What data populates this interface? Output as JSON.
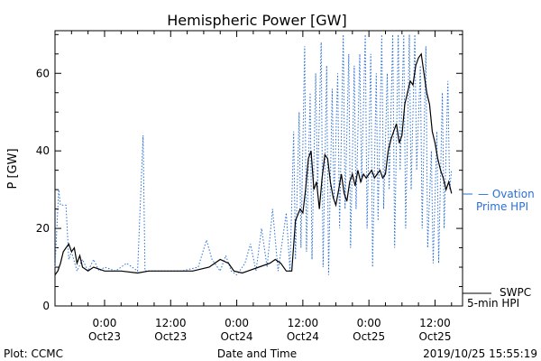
{
  "chart_data": {
    "type": "line",
    "title": "Hemispheric Power [GW]",
    "xlabel": "Date and Time",
    "ylabel": "P [GW]",
    "ylim": [
      0,
      71
    ],
    "xlim": [
      "2019-10-22T15:00",
      "2019-10-25T17:00"
    ],
    "yticks": [
      0,
      20,
      40,
      60
    ],
    "yticks_minor_step": 5,
    "xticks": [
      {
        "t": "2019-10-23T00:00",
        "l1": "0:00",
        "l2": "Oct23"
      },
      {
        "t": "2019-10-23T12:00",
        "l1": "12:00",
        "l2": "Oct23"
      },
      {
        "t": "2019-10-24T00:00",
        "l1": "0:00",
        "l2": "Oct24"
      },
      {
        "t": "2019-10-24T12:00",
        "l1": "12:00",
        "l2": "Oct24"
      },
      {
        "t": "2019-10-25T00:00",
        "l1": "0:00",
        "l2": "Oct25"
      },
      {
        "t": "2019-10-25T12:00",
        "l1": "12:00",
        "l2": "Oct25"
      }
    ],
    "grid": false,
    "series": [
      {
        "name": "SWPC 5-min HPI",
        "style": "solid",
        "color": "#000000",
        "points": [
          [
            "2019-10-22T15:00",
            8
          ],
          [
            "2019-10-22T15:30",
            9
          ],
          [
            "2019-10-22T16:00",
            11
          ],
          [
            "2019-10-22T16:30",
            14
          ],
          [
            "2019-10-22T17:00",
            15
          ],
          [
            "2019-10-22T17:30",
            16
          ],
          [
            "2019-10-22T18:00",
            14
          ],
          [
            "2019-10-22T18:30",
            15
          ],
          [
            "2019-10-22T19:00",
            11
          ],
          [
            "2019-10-22T19:30",
            13
          ],
          [
            "2019-10-22T20:00",
            10
          ],
          [
            "2019-10-22T21:00",
            9
          ],
          [
            "2019-10-22T22:00",
            10
          ],
          [
            "2019-10-23T00:00",
            9
          ],
          [
            "2019-10-23T03:00",
            9
          ],
          [
            "2019-10-23T06:00",
            8.5
          ],
          [
            "2019-10-23T08:00",
            9
          ],
          [
            "2019-10-23T12:00",
            9
          ],
          [
            "2019-10-23T16:00",
            9
          ],
          [
            "2019-10-23T19:00",
            10
          ],
          [
            "2019-10-23T21:00",
            12
          ],
          [
            "2019-10-23T22:30",
            11
          ],
          [
            "2019-10-23T23:30",
            9
          ],
          [
            "2019-10-24T01:00",
            8.5
          ],
          [
            "2019-10-24T02:00",
            9
          ],
          [
            "2019-10-24T04:00",
            10
          ],
          [
            "2019-10-24T06:00",
            11
          ],
          [
            "2019-10-24T07:00",
            12
          ],
          [
            "2019-10-24T08:00",
            11
          ],
          [
            "2019-10-24T09:00",
            9
          ],
          [
            "2019-10-24T10:00",
            9
          ],
          [
            "2019-10-24T10:40",
            22
          ],
          [
            "2019-10-24T11:30",
            25
          ],
          [
            "2019-10-24T12:00",
            24
          ],
          [
            "2019-10-24T12:30",
            30
          ],
          [
            "2019-10-24T13:00",
            38
          ],
          [
            "2019-10-24T13:30",
            40
          ],
          [
            "2019-10-24T14:00",
            30
          ],
          [
            "2019-10-24T14:30",
            32
          ],
          [
            "2019-10-24T15:00",
            25
          ],
          [
            "2019-10-24T15:30",
            33
          ],
          [
            "2019-10-24T16:00",
            39
          ],
          [
            "2019-10-24T16:30",
            38
          ],
          [
            "2019-10-24T17:00",
            32
          ],
          [
            "2019-10-24T17:30",
            28
          ],
          [
            "2019-10-24T18:00",
            26
          ],
          [
            "2019-10-24T18:30",
            30
          ],
          [
            "2019-10-24T19:00",
            34
          ],
          [
            "2019-10-24T19:30",
            29
          ],
          [
            "2019-10-24T20:00",
            27
          ],
          [
            "2019-10-24T20:30",
            32
          ],
          [
            "2019-10-24T21:00",
            34
          ],
          [
            "2019-10-24T21:30",
            31
          ],
          [
            "2019-10-24T22:00",
            35
          ],
          [
            "2019-10-24T22:30",
            32
          ],
          [
            "2019-10-24T23:00",
            34
          ],
          [
            "2019-10-24T23:30",
            33
          ],
          [
            "2019-10-25T00:00",
            34
          ],
          [
            "2019-10-25T00:30",
            35
          ],
          [
            "2019-10-25T01:00",
            33
          ],
          [
            "2019-10-25T01:30",
            34
          ],
          [
            "2019-10-25T02:00",
            35
          ],
          [
            "2019-10-25T02:30",
            33
          ],
          [
            "2019-10-25T03:00",
            34
          ],
          [
            "2019-10-25T03:30",
            40
          ],
          [
            "2019-10-25T04:00",
            43
          ],
          [
            "2019-10-25T04:30",
            45
          ],
          [
            "2019-10-25T05:00",
            47
          ],
          [
            "2019-10-25T05:30",
            42
          ],
          [
            "2019-10-25T06:00",
            44
          ],
          [
            "2019-10-25T06:30",
            52
          ],
          [
            "2019-10-25T07:00",
            55
          ],
          [
            "2019-10-25T07:30",
            58
          ],
          [
            "2019-10-25T08:00",
            57
          ],
          [
            "2019-10-25T08:30",
            62
          ],
          [
            "2019-10-25T09:00",
            64
          ],
          [
            "2019-10-25T09:30",
            65
          ],
          [
            "2019-10-25T10:00",
            60
          ],
          [
            "2019-10-25T10:30",
            55
          ],
          [
            "2019-10-25T11:00",
            52
          ],
          [
            "2019-10-25T11:30",
            45
          ],
          [
            "2019-10-25T12:00",
            42
          ],
          [
            "2019-10-25T12:30",
            38
          ],
          [
            "2019-10-25T13:00",
            35
          ],
          [
            "2019-10-25T13:30",
            33
          ],
          [
            "2019-10-25T14:00",
            30
          ],
          [
            "2019-10-25T14:30",
            32
          ],
          [
            "2019-10-25T15:00",
            29
          ]
        ]
      },
      {
        "name": "Ovation Prime HPI",
        "style": "dotted",
        "color": "#2a6fd6",
        "points": [
          [
            "2019-10-22T15:00",
            10
          ],
          [
            "2019-10-22T15:40",
            30
          ],
          [
            "2019-10-22T16:00",
            26
          ],
          [
            "2019-10-22T17:00",
            26
          ],
          [
            "2019-10-22T17:30",
            12
          ],
          [
            "2019-10-22T18:00",
            14
          ],
          [
            "2019-10-22T19:00",
            9
          ],
          [
            "2019-10-22T20:00",
            12
          ],
          [
            "2019-10-22T21:00",
            9
          ],
          [
            "2019-10-22T22:00",
            12
          ],
          [
            "2019-10-22T23:00",
            9
          ],
          [
            "2019-10-23T00:00",
            10
          ],
          [
            "2019-10-23T02:00",
            9
          ],
          [
            "2019-10-23T04:00",
            11
          ],
          [
            "2019-10-23T06:00",
            9
          ],
          [
            "2019-10-23T07:00",
            44
          ],
          [
            "2019-10-23T07:20",
            9
          ],
          [
            "2019-10-23T10:00",
            9
          ],
          [
            "2019-10-23T14:00",
            9
          ],
          [
            "2019-10-23T17:00",
            10
          ],
          [
            "2019-10-23T18:30",
            17
          ],
          [
            "2019-10-23T19:30",
            12
          ],
          [
            "2019-10-23T21:00",
            9
          ],
          [
            "2019-10-23T22:00",
            13
          ],
          [
            "2019-10-23T23:00",
            9
          ],
          [
            "2019-10-24T00:00",
            8
          ],
          [
            "2019-10-24T01:30",
            11
          ],
          [
            "2019-10-24T02:30",
            16
          ],
          [
            "2019-10-24T03:30",
            9
          ],
          [
            "2019-10-24T04:30",
            20
          ],
          [
            "2019-10-24T05:30",
            10
          ],
          [
            "2019-10-24T06:30",
            25
          ],
          [
            "2019-10-24T07:30",
            9
          ],
          [
            "2019-10-24T08:00",
            14
          ],
          [
            "2019-10-24T09:00",
            24
          ],
          [
            "2019-10-24T09:40",
            9
          ],
          [
            "2019-10-24T10:20",
            45
          ],
          [
            "2019-10-24T10:40",
            12
          ],
          [
            "2019-10-24T11:20",
            50
          ],
          [
            "2019-10-24T11:40",
            15
          ],
          [
            "2019-10-24T12:20",
            67
          ],
          [
            "2019-10-24T12:40",
            14
          ],
          [
            "2019-10-24T13:20",
            55
          ],
          [
            "2019-10-24T13:40",
            12
          ],
          [
            "2019-10-24T14:20",
            60
          ],
          [
            "2019-10-24T14:40",
            30
          ],
          [
            "2019-10-24T15:20",
            68
          ],
          [
            "2019-10-24T15:40",
            10
          ],
          [
            "2019-10-24T16:20",
            62
          ],
          [
            "2019-10-24T16:40",
            8
          ],
          [
            "2019-10-24T17:20",
            56
          ],
          [
            "2019-10-24T17:40",
            27
          ],
          [
            "2019-10-24T18:20",
            60
          ],
          [
            "2019-10-24T18:40",
            20
          ],
          [
            "2019-10-24T19:20",
            70
          ],
          [
            "2019-10-24T19:40",
            25
          ],
          [
            "2019-10-24T20:20",
            65
          ],
          [
            "2019-10-24T20:40",
            15
          ],
          [
            "2019-10-24T21:20",
            62
          ],
          [
            "2019-10-24T21:40",
            25
          ],
          [
            "2019-10-24T22:20",
            65
          ],
          [
            "2019-10-24T22:40",
            32
          ],
          [
            "2019-10-24T23:20",
            70
          ],
          [
            "2019-10-24T23:40",
            20
          ],
          [
            "2019-10-25T00:20",
            65
          ],
          [
            "2019-10-25T00:40",
            10
          ],
          [
            "2019-10-25T01:20",
            60
          ],
          [
            "2019-10-25T01:40",
            22
          ],
          [
            "2019-10-25T02:20",
            70
          ],
          [
            "2019-10-25T02:40",
            25
          ],
          [
            "2019-10-25T03:20",
            60
          ],
          [
            "2019-10-25T03:40",
            30
          ],
          [
            "2019-10-25T04:20",
            70
          ],
          [
            "2019-10-25T04:40",
            15
          ],
          [
            "2019-10-25T05:20",
            70
          ],
          [
            "2019-10-25T05:40",
            35
          ],
          [
            "2019-10-25T06:20",
            70
          ],
          [
            "2019-10-25T06:40",
            20
          ],
          [
            "2019-10-25T07:20",
            70
          ],
          [
            "2019-10-25T07:40",
            30
          ],
          [
            "2019-10-25T08:20",
            70
          ],
          [
            "2019-10-25T08:40",
            35
          ],
          [
            "2019-10-25T09:20",
            62
          ],
          [
            "2019-10-25T09:40",
            20
          ],
          [
            "2019-10-25T10:20",
            67
          ],
          [
            "2019-10-25T10:40",
            15
          ],
          [
            "2019-10-25T11:20",
            40
          ],
          [
            "2019-10-25T11:40",
            11
          ],
          [
            "2019-10-25T12:20",
            45
          ],
          [
            "2019-10-25T12:40",
            11
          ],
          [
            "2019-10-25T13:20",
            55
          ],
          [
            "2019-10-25T13:40",
            20
          ],
          [
            "2019-10-25T14:20",
            58
          ],
          [
            "2019-10-25T14:40",
            30
          ],
          [
            "2019-10-25T15:00",
            35
          ]
        ]
      }
    ]
  },
  "legend": {
    "ovation": {
      "line1": "— Ovation",
      "line2": "Prime HPI",
      "color": "#2a6fd6"
    },
    "swpc": {
      "line1": "SWPC",
      "line2": "5-min HPI"
    }
  },
  "footer": {
    "left": "Plot: CCMC",
    "right": "2019/10/25 15:55:19"
  }
}
